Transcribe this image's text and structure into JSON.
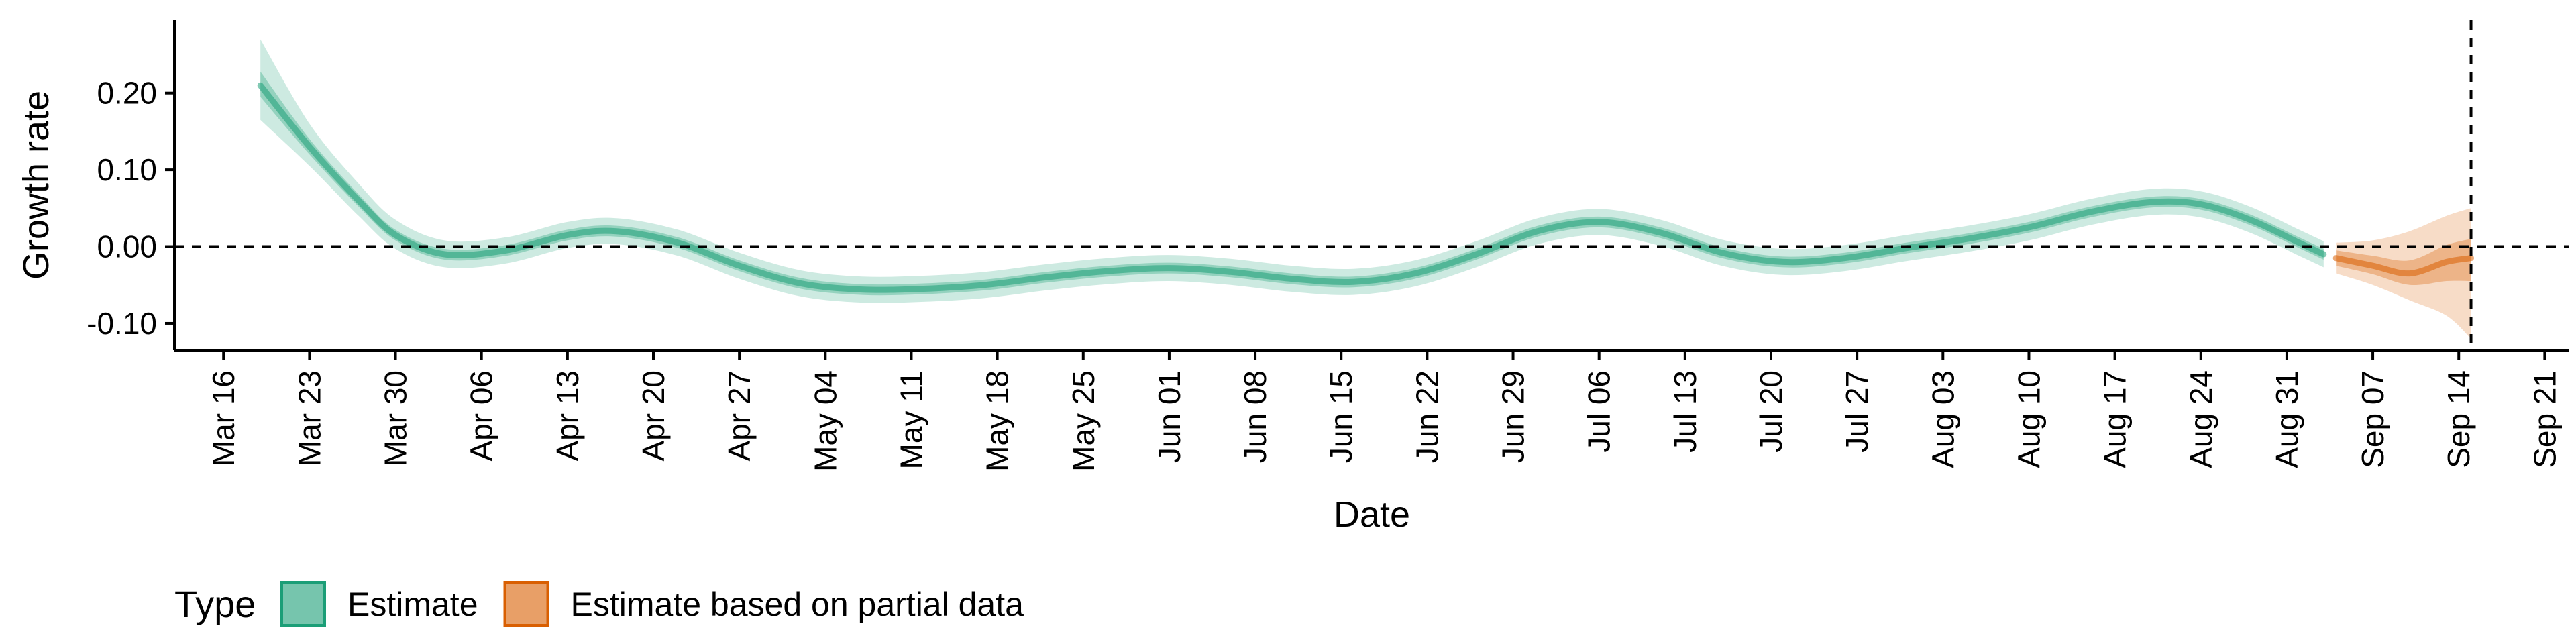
{
  "chart_data": {
    "type": "area",
    "title": "",
    "xlabel": "Date",
    "ylabel": "Growth rate",
    "grid": false,
    "legend_position": "bottom-left",
    "ylim": [
      -0.135,
      0.295
    ],
    "xlim": [
      "2020-03-12",
      "2020-09-23"
    ],
    "x_ticks": [
      "2020-03-16",
      "2020-03-23",
      "2020-03-30",
      "2020-04-06",
      "2020-04-13",
      "2020-04-20",
      "2020-04-27",
      "2020-05-04",
      "2020-05-11",
      "2020-05-18",
      "2020-05-25",
      "2020-06-01",
      "2020-06-08",
      "2020-06-15",
      "2020-06-22",
      "2020-06-29",
      "2020-07-06",
      "2020-07-13",
      "2020-07-20",
      "2020-07-27",
      "2020-08-03",
      "2020-08-10",
      "2020-08-17",
      "2020-08-24",
      "2020-08-31",
      "2020-09-07",
      "2020-09-14",
      "2020-09-21"
    ],
    "x_tick_labels": [
      "Mar 16",
      "Mar 23",
      "Mar 30",
      "Apr 06",
      "Apr 13",
      "Apr 20",
      "Apr 27",
      "May 04",
      "May 11",
      "May 18",
      "May 25",
      "Jun 01",
      "Jun 08",
      "Jun 15",
      "Jun 22",
      "Jun 29",
      "Jul 06",
      "Jul 13",
      "Jul 20",
      "Jul 27",
      "Aug 03",
      "Aug 10",
      "Aug 17",
      "Aug 24",
      "Aug 31",
      "Sep 07",
      "Sep 14",
      "Sep 21"
    ],
    "y_ticks": [
      0.2,
      0.1,
      0.0,
      -0.1
    ],
    "y_tick_labels": [
      "0.20",
      "0.10",
      "0.00",
      "-0.10"
    ],
    "hline": 0,
    "vline": "2020-09-15",
    "legend_title": "Type",
    "series": [
      {
        "name": "Estimate",
        "color": "#1b9e77",
        "points": [
          {
            "x": "2020-03-19",
            "median": 0.21,
            "lo50": 0.195,
            "hi50": 0.228,
            "lo90": 0.165,
            "hi90": 0.27
          },
          {
            "x": "2020-03-23",
            "median": 0.13,
            "lo50": 0.12,
            "hi50": 0.14,
            "lo90": 0.105,
            "hi90": 0.16
          },
          {
            "x": "2020-03-27",
            "median": 0.06,
            "lo50": 0.052,
            "hi50": 0.068,
            "lo90": 0.04,
            "hi90": 0.082
          },
          {
            "x": "2020-03-30",
            "median": 0.015,
            "lo50": 0.008,
            "hi50": 0.022,
            "lo90": -0.003,
            "hi90": 0.035
          },
          {
            "x": "2020-04-03",
            "median": -0.01,
            "lo50": -0.017,
            "hi50": -0.003,
            "lo90": -0.027,
            "hi90": 0.008
          },
          {
            "x": "2020-04-08",
            "median": -0.005,
            "lo50": -0.012,
            "hi50": 0.002,
            "lo90": -0.022,
            "hi90": 0.012
          },
          {
            "x": "2020-04-13",
            "median": 0.015,
            "lo50": 0.008,
            "hi50": 0.022,
            "lo90": -0.002,
            "hi90": 0.032
          },
          {
            "x": "2020-04-17",
            "median": 0.02,
            "lo50": 0.013,
            "hi50": 0.027,
            "lo90": 0.003,
            "hi90": 0.037
          },
          {
            "x": "2020-04-22",
            "median": 0.005,
            "lo50": -0.002,
            "hi50": 0.012,
            "lo90": -0.012,
            "hi90": 0.022
          },
          {
            "x": "2020-04-27",
            "median": -0.025,
            "lo50": -0.032,
            "hi50": -0.018,
            "lo90": -0.042,
            "hi90": -0.008
          },
          {
            "x": "2020-05-02",
            "median": -0.048,
            "lo50": -0.055,
            "hi50": -0.041,
            "lo90": -0.065,
            "hi90": -0.031
          },
          {
            "x": "2020-05-07",
            "median": -0.056,
            "lo50": -0.063,
            "hi50": -0.049,
            "lo90": -0.073,
            "hi90": -0.039
          },
          {
            "x": "2020-05-12",
            "median": -0.055,
            "lo50": -0.062,
            "hi50": -0.048,
            "lo90": -0.072,
            "hi90": -0.038
          },
          {
            "x": "2020-05-17",
            "median": -0.05,
            "lo50": -0.057,
            "hi50": -0.043,
            "lo90": -0.067,
            "hi90": -0.033
          },
          {
            "x": "2020-05-22",
            "median": -0.04,
            "lo50": -0.047,
            "hi50": -0.033,
            "lo90": -0.057,
            "hi90": -0.023
          },
          {
            "x": "2020-05-27",
            "median": -0.032,
            "lo50": -0.039,
            "hi50": -0.025,
            "lo90": -0.049,
            "hi90": -0.015
          },
          {
            "x": "2020-06-01",
            "median": -0.028,
            "lo50": -0.035,
            "hi50": -0.021,
            "lo90": -0.045,
            "hi90": -0.011
          },
          {
            "x": "2020-06-06",
            "median": -0.033,
            "lo50": -0.04,
            "hi50": -0.026,
            "lo90": -0.05,
            "hi90": -0.016
          },
          {
            "x": "2020-06-11",
            "median": -0.042,
            "lo50": -0.049,
            "hi50": -0.035,
            "lo90": -0.059,
            "hi90": -0.025
          },
          {
            "x": "2020-06-16",
            "median": -0.046,
            "lo50": -0.053,
            "hi50": -0.039,
            "lo90": -0.063,
            "hi90": -0.029
          },
          {
            "x": "2020-06-21",
            "median": -0.035,
            "lo50": -0.042,
            "hi50": -0.028,
            "lo90": -0.052,
            "hi90": -0.018
          },
          {
            "x": "2020-06-26",
            "median": -0.01,
            "lo50": -0.017,
            "hi50": -0.003,
            "lo90": -0.027,
            "hi90": 0.007
          },
          {
            "x": "2020-07-01",
            "median": 0.02,
            "lo50": 0.013,
            "hi50": 0.027,
            "lo90": 0.003,
            "hi90": 0.037
          },
          {
            "x": "2020-07-06",
            "median": 0.032,
            "lo50": 0.025,
            "hi50": 0.039,
            "lo90": 0.015,
            "hi90": 0.049
          },
          {
            "x": "2020-07-11",
            "median": 0.018,
            "lo50": 0.011,
            "hi50": 0.025,
            "lo90": 0.001,
            "hi90": 0.035
          },
          {
            "x": "2020-07-16",
            "median": -0.008,
            "lo50": -0.015,
            "hi50": -0.001,
            "lo90": -0.025,
            "hi90": 0.009
          },
          {
            "x": "2020-07-21",
            "median": -0.02,
            "lo50": -0.027,
            "hi50": -0.013,
            "lo90": -0.037,
            "hi90": -0.003
          },
          {
            "x": "2020-07-26",
            "median": -0.015,
            "lo50": -0.022,
            "hi50": -0.008,
            "lo90": -0.032,
            "hi90": 0.002
          },
          {
            "x": "2020-07-31",
            "median": -0.002,
            "lo50": -0.009,
            "hi50": 0.005,
            "lo90": -0.019,
            "hi90": 0.015
          },
          {
            "x": "2020-08-05",
            "median": 0.01,
            "lo50": 0.003,
            "hi50": 0.017,
            "lo90": -0.007,
            "hi90": 0.027
          },
          {
            "x": "2020-08-10",
            "median": 0.025,
            "lo50": 0.018,
            "hi50": 0.032,
            "lo90": 0.008,
            "hi90": 0.042
          },
          {
            "x": "2020-08-15",
            "median": 0.045,
            "lo50": 0.038,
            "hi50": 0.052,
            "lo90": 0.028,
            "hi90": 0.062
          },
          {
            "x": "2020-08-20",
            "median": 0.058,
            "lo50": 0.051,
            "hi50": 0.065,
            "lo90": 0.041,
            "hi90": 0.075
          },
          {
            "x": "2020-08-24",
            "median": 0.055,
            "lo50": 0.048,
            "hi50": 0.062,
            "lo90": 0.038,
            "hi90": 0.072
          },
          {
            "x": "2020-08-28",
            "median": 0.035,
            "lo50": 0.028,
            "hi50": 0.042,
            "lo90": 0.018,
            "hi90": 0.052
          },
          {
            "x": "2020-09-01",
            "median": 0.005,
            "lo50": -0.002,
            "hi50": 0.012,
            "lo90": -0.012,
            "hi90": 0.022
          },
          {
            "x": "2020-09-03",
            "median": -0.01,
            "lo50": -0.017,
            "hi50": -0.003,
            "lo90": -0.027,
            "hi90": 0.007
          }
        ]
      },
      {
        "name": "Estimate based on partial data",
        "color": "#d95f02",
        "points": [
          {
            "x": "2020-09-04",
            "median": -0.015,
            "lo50": -0.025,
            "hi50": -0.005,
            "lo90": -0.035,
            "hi90": 0.005
          },
          {
            "x": "2020-09-07",
            "median": -0.025,
            "lo50": -0.036,
            "hi50": -0.012,
            "lo90": -0.05,
            "hi90": 0.008
          },
          {
            "x": "2020-09-10",
            "median": -0.035,
            "lo50": -0.05,
            "hi50": -0.018,
            "lo90": -0.07,
            "hi90": 0.02
          },
          {
            "x": "2020-09-13",
            "median": -0.02,
            "lo50": -0.045,
            "hi50": 0.002,
            "lo90": -0.09,
            "hi90": 0.04
          },
          {
            "x": "2020-09-15",
            "median": -0.015,
            "lo50": -0.045,
            "hi50": 0.01,
            "lo90": -0.12,
            "hi90": 0.05
          }
        ]
      }
    ]
  }
}
